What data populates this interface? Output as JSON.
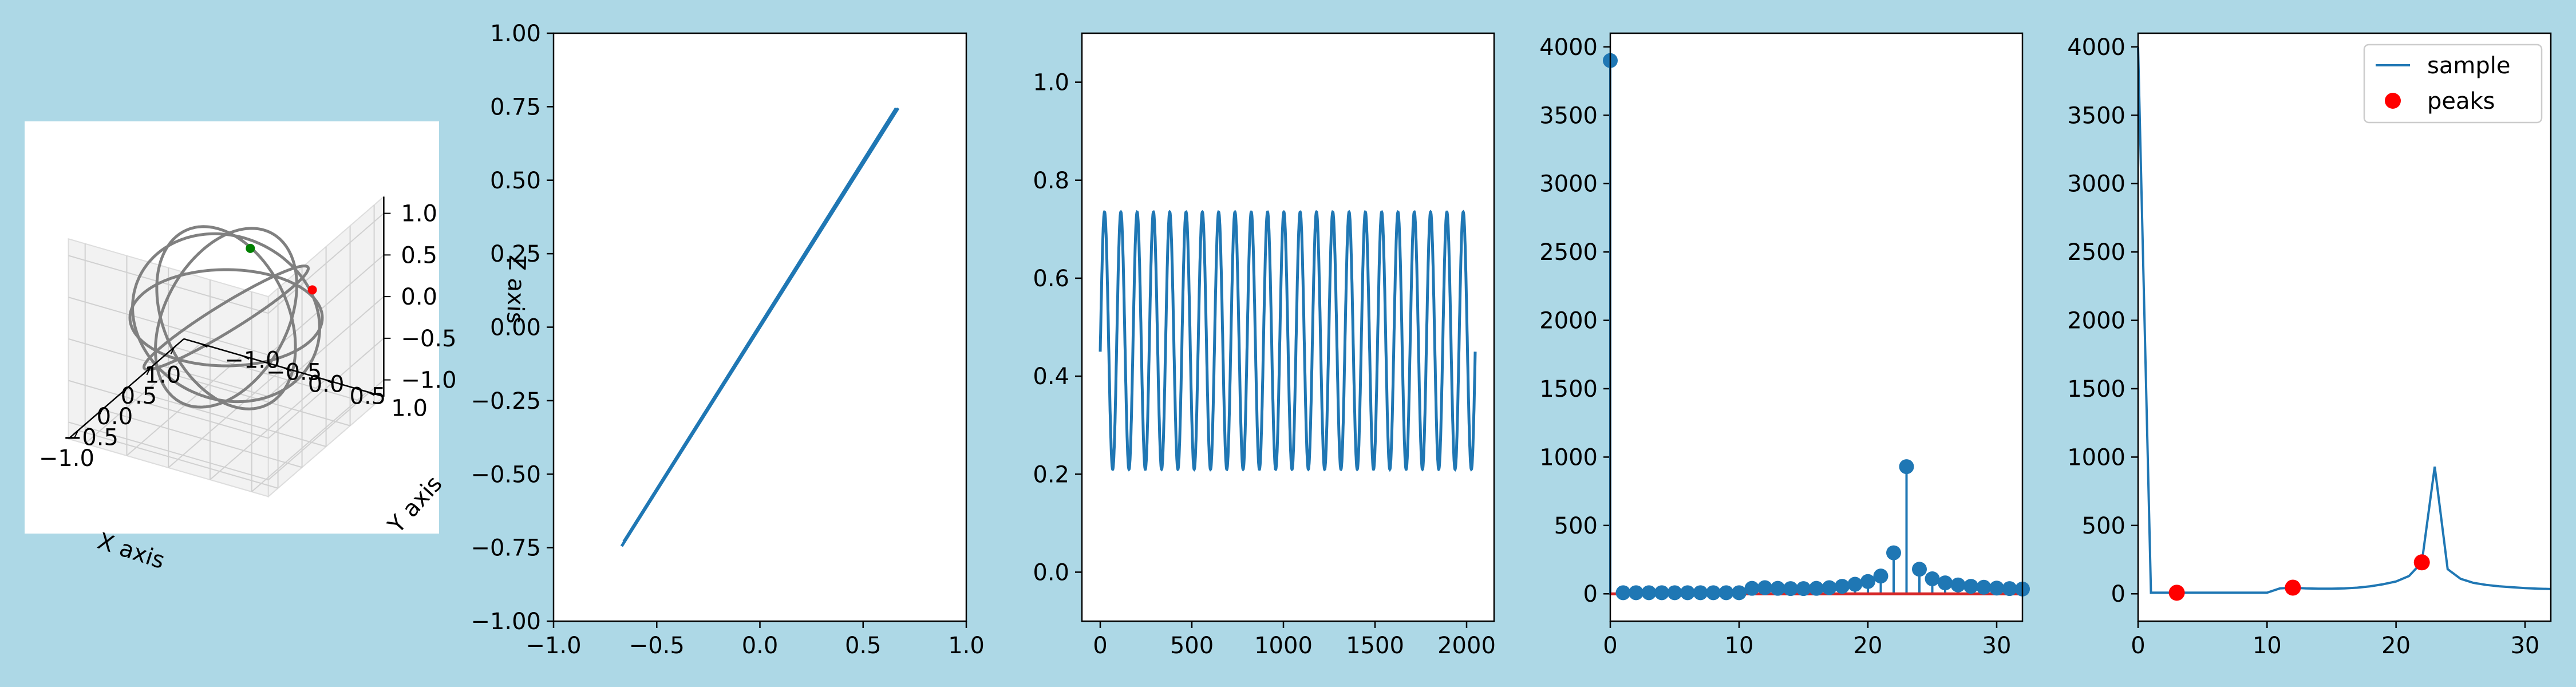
{
  "figure": {
    "background": "#add8e6"
  },
  "colors": {
    "line": "#1f77b4",
    "curve3d": "#808080",
    "baseline": "#d62728",
    "peaks": "#ff0000",
    "point_green": "#008000",
    "point_red": "#ff0000"
  },
  "chart_data": [
    {
      "type": "scatter",
      "projection": "3d",
      "xlabel": "X axis",
      "ylabel": "Y axis",
      "zlabel": "Z axis",
      "xticks": [
        "−1.0",
        "−0.5",
        "0.0",
        "0.5",
        "1.0"
      ],
      "yticks": [
        "−1.0",
        "−0.5",
        "0.0",
        "0.5",
        "1.0"
      ],
      "zticks": [
        "−1.0",
        "−0.5",
        "0.0",
        "0.5",
        "1.0"
      ],
      "xlim": [
        -1.2,
        1.2
      ],
      "ylim": [
        -1.2,
        1.2
      ],
      "zlim": [
        -1.2,
        1.2
      ],
      "curves": [
        {
          "desc": "horizontal ring",
          "color": "gray"
        },
        {
          "desc": "tilted ring",
          "color": "gray"
        },
        {
          "desc": "vertical ring",
          "color": "gray"
        },
        {
          "desc": "ring",
          "color": "gray"
        },
        {
          "desc": "ring",
          "color": "gray"
        }
      ],
      "points": [
        {
          "x": 0.85,
          "y": -0.2,
          "z": 0.35,
          "color": "green"
        },
        {
          "x": 1.1,
          "y": 0.4,
          "z": -0.1,
          "color": "red"
        }
      ],
      "grid": true
    },
    {
      "type": "line",
      "xlim": [
        -1.0,
        1.0
      ],
      "ylim": [
        -1.0,
        1.0
      ],
      "xticks": [
        -1.0,
        -0.5,
        0.0,
        0.5,
        1.0
      ],
      "xtick_labels": [
        "−1.0",
        "−0.5",
        "0.0",
        "0.5",
        "1.0"
      ],
      "yticks": [
        -1.0,
        -0.75,
        -0.5,
        -0.25,
        0.0,
        0.25,
        0.5,
        0.75,
        1.0
      ],
      "ytick_labels": [
        "−1.00",
        "−0.75",
        "−0.50",
        "−0.25",
        "0.00",
        "0.25",
        "0.50",
        "0.75",
        "1.00"
      ],
      "series": [
        {
          "x": [
            -0.67,
            0.67
          ],
          "y": [
            -0.745,
            0.745
          ]
        },
        {
          "x": [
            -0.66,
            0.66
          ],
          "y": [
            -0.73,
            0.745
          ]
        }
      ],
      "grid": false
    },
    {
      "type": "line",
      "xlim": [
        -100,
        2150
      ],
      "ylim": [
        -0.1,
        1.1
      ],
      "xticks": [
        0,
        500,
        1000,
        1500,
        2000
      ],
      "xtick_labels": [
        "0",
        "500",
        "1000",
        "1500",
        "2000"
      ],
      "yticks": [
        0.0,
        0.2,
        0.4,
        0.6,
        0.8,
        1.0
      ],
      "ytick_labels": [
        "0.0",
        "0.2",
        "0.4",
        "0.6",
        "0.8",
        "1.0"
      ],
      "signal": {
        "start": 0,
        "end": 2047,
        "cycles": 23,
        "min": 0.21,
        "max": 0.735,
        "first_value": 0.45
      },
      "grid": false
    },
    {
      "type": "stem",
      "xlim": [
        0,
        32
      ],
      "ylim": [
        -200,
        4100
      ],
      "xticks": [
        0,
        10,
        20,
        30
      ],
      "xtick_labels": [
        "0",
        "10",
        "20",
        "30"
      ],
      "yticks": [
        0,
        500,
        1000,
        1500,
        2000,
        2500,
        3000,
        3500,
        4000
      ],
      "ytick_labels": [
        "0",
        "500",
        "1000",
        "1500",
        "2000",
        "2500",
        "3000",
        "3500",
        "4000"
      ],
      "x": [
        0,
        1,
        2,
        3,
        4,
        5,
        6,
        7,
        8,
        9,
        10,
        11,
        12,
        13,
        14,
        15,
        16,
        17,
        18,
        19,
        20,
        21,
        22,
        23,
        24,
        25,
        26,
        27,
        28,
        29,
        30,
        31,
        32
      ],
      "values": [
        3900,
        8,
        8,
        8,
        8,
        8,
        8,
        8,
        8,
        8,
        8,
        40,
        45,
        40,
        38,
        38,
        40,
        45,
        55,
        70,
        90,
        130,
        300,
        930,
        180,
        110,
        80,
        65,
        55,
        48,
        42,
        38,
        35
      ],
      "grid": false
    },
    {
      "type": "line",
      "xlim": [
        0,
        32
      ],
      "ylim": [
        -200,
        4100
      ],
      "xticks": [
        0,
        10,
        20,
        30
      ],
      "xtick_labels": [
        "0",
        "10",
        "20",
        "30"
      ],
      "yticks": [
        0,
        500,
        1000,
        1500,
        2000,
        2500,
        3000,
        3500,
        4000
      ],
      "ytick_labels": [
        "0",
        "500",
        "1000",
        "1500",
        "2000",
        "2500",
        "3000",
        "3500",
        "4000"
      ],
      "series": [
        {
          "name": "sample",
          "x": [
            0,
            1,
            2,
            3,
            4,
            5,
            6,
            7,
            8,
            9,
            10,
            11,
            12,
            13,
            14,
            15,
            16,
            17,
            18,
            19,
            20,
            21,
            22,
            23,
            24,
            25,
            26,
            27,
            28,
            29,
            30,
            31,
            32
          ],
          "values": [
            4000,
            8,
            8,
            8,
            8,
            8,
            8,
            8,
            8,
            8,
            8,
            40,
            45,
            40,
            38,
            38,
            40,
            45,
            55,
            70,
            90,
            130,
            230,
            930,
            180,
            110,
            80,
            65,
            55,
            48,
            42,
            38,
            35
          ]
        }
      ],
      "peaks": {
        "name": "peaks",
        "x": [
          3,
          12,
          22
        ],
        "values": [
          8,
          45,
          230
        ]
      },
      "legend": {
        "position": "upper right",
        "entries": [
          "sample",
          "peaks"
        ]
      },
      "grid": false
    }
  ]
}
